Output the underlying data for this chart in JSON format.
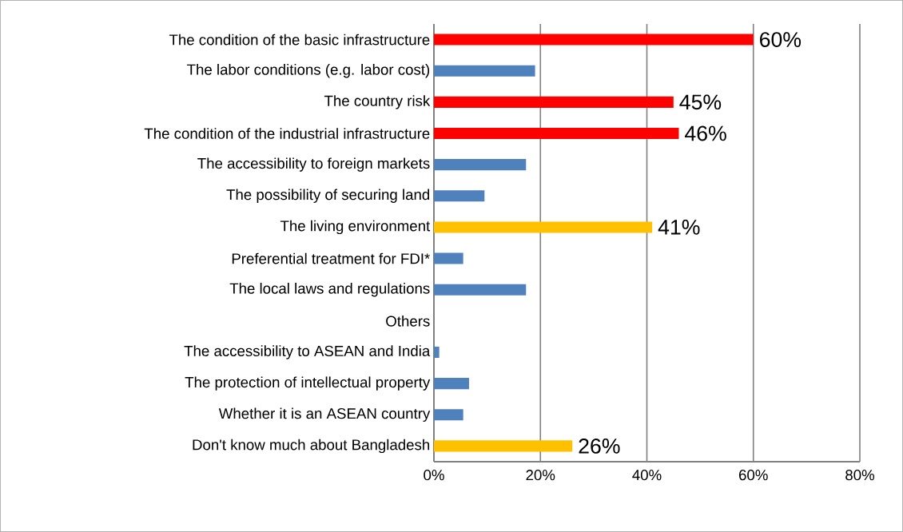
{
  "chart_data": {
    "type": "bar",
    "orientation": "horizontal",
    "categories": [
      "The condition of the basic infrastructure",
      "The labor conditions (e.g. labor cost)",
      "The country risk",
      "The condition of the industrial infrastructure",
      "The accessibility to foreign markets",
      "The possibility of securing land",
      "The living environment",
      "Preferential treatment for FDI*",
      "The local laws and regulations",
      "Others",
      "The accessibility to ASEAN and India",
      "The protection of intellectual property",
      "Whether it is an ASEAN country",
      "Don't know much about Bangladesh"
    ],
    "values": [
      60,
      19,
      45,
      46,
      17.3,
      9.5,
      41,
      5.5,
      17.3,
      0,
      1,
      6.6,
      5.5,
      26
    ],
    "colors": [
      "#ff0000",
      "#4f81bd",
      "#ff0000",
      "#ff0000",
      "#4f81bd",
      "#4f81bd",
      "#ffc000",
      "#4f81bd",
      "#4f81bd",
      "#4f81bd",
      "#4f81bd",
      "#4f81bd",
      "#4f81bd",
      "#ffc000"
    ],
    "value_labels": [
      "60%",
      null,
      "45%",
      "46%",
      null,
      null,
      "41%",
      null,
      null,
      null,
      null,
      null,
      null,
      "26%"
    ],
    "xlim": [
      0,
      80
    ],
    "xticks": [
      {
        "value": 0,
        "label": "0%"
      },
      {
        "value": 20,
        "label": "20%"
      },
      {
        "value": 40,
        "label": "40%"
      },
      {
        "value": 60,
        "label": "60%"
      },
      {
        "value": 80,
        "label": "80%"
      }
    ],
    "grid": "x"
  }
}
